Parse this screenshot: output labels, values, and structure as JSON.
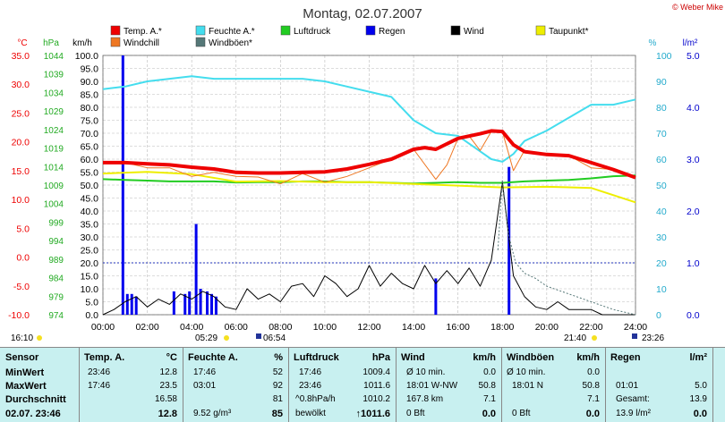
{
  "header": {
    "title": "Montag, 02.07.2007",
    "copyright": "© Weber Mike"
  },
  "colors": {
    "temp": "#ee0000",
    "humidity": "#44ddee",
    "pressure": "#22cc22",
    "rain": "#0000ee",
    "wind": "#000000",
    "dewpoint": "#eeee00",
    "windchill": "#ee7722",
    "gust": "#557777",
    "stats_bg": "#c8f0f0"
  },
  "legend": [
    {
      "label": "Temp. A.*",
      "color": "#ee0000"
    },
    {
      "label": "Feuchte A.*",
      "color": "#44ddee"
    },
    {
      "label": "Luftdruck",
      "color": "#22cc22"
    },
    {
      "label": "Regen",
      "color": "#0000ee"
    },
    {
      "label": "Wind",
      "color": "#000000"
    },
    {
      "label": "Taupunkt*",
      "color": "#eeee00"
    },
    {
      "label": "Windchill",
      "color": "#ee7722"
    },
    {
      "label": "Windböen*",
      "color": "#557777"
    }
  ],
  "axis_units": {
    "temp": "°C",
    "pressure": "hPa",
    "wind": "km/h",
    "humidity": "%",
    "rain": "l/m²"
  },
  "chart_data": {
    "type": "line",
    "x_unit": "hour",
    "xlim": [
      0,
      24
    ],
    "x_ticks": [
      "00:00",
      "02:00",
      "04:00",
      "06:00",
      "08:00",
      "10:00",
      "12:00",
      "14:00",
      "16:00",
      "18:00",
      "20:00",
      "22:00",
      "24:00"
    ],
    "y_temp": {
      "range": [
        -10,
        35
      ],
      "ticks": [
        "35.0",
        "30.0",
        "25.0",
        "20.0",
        "15.0",
        "10.0",
        "5.0",
        "0.0",
        "-5.0",
        "-10.0"
      ]
    },
    "y_pressure": {
      "range": [
        974,
        1044
      ],
      "ticks": [
        "1044",
        "1039",
        "1034",
        "1029",
        "1024",
        "1019",
        "1014",
        "1009",
        "1004",
        "999",
        "994",
        "989",
        "984",
        "979",
        "974"
      ]
    },
    "y_wind": {
      "range": [
        0,
        100
      ],
      "ticks": [
        "100.0",
        "95.0",
        "90.0",
        "85.0",
        "80.0",
        "75.0",
        "70.0",
        "65.0",
        "60.0",
        "55.0",
        "50.0",
        "45.0",
        "40.0",
        "35.0",
        "30.0",
        "25.0",
        "20.0",
        "15.0",
        "10.0",
        "5.0",
        "0.0"
      ]
    },
    "y_humidity": {
      "range": [
        0,
        100
      ],
      "ticks": [
        "100",
        "90",
        "80",
        "70",
        "60",
        "50",
        "40",
        "30",
        "20",
        "10",
        "0"
      ]
    },
    "y_rain": {
      "range": [
        0,
        5
      ],
      "ticks": [
        "5.0",
        "4.0",
        "3.0",
        "2.0",
        "1.0",
        "0.0"
      ]
    },
    "grid": true,
    "series": [
      {
        "name": "Temp. A.*",
        "axis": "temp",
        "x": [
          0,
          1,
          2,
          3,
          4,
          5,
          6,
          7,
          8,
          9,
          10,
          11,
          12,
          13,
          14,
          14.5,
          15,
          16,
          17,
          17.5,
          18,
          18.5,
          19,
          20,
          21,
          22,
          23,
          24
        ],
        "y": [
          16.4,
          16.4,
          16.2,
          16.0,
          15.6,
          15.3,
          14.7,
          14.6,
          14.6,
          14.7,
          14.8,
          15.3,
          16.1,
          17.0,
          18.7,
          19.0,
          18.7,
          20.6,
          21.4,
          21.9,
          21.8,
          19.5,
          18.3,
          17.8,
          17.6,
          16.4,
          15.2,
          13.8
        ]
      },
      {
        "name": "Feuchte A.*",
        "axis": "humidity",
        "x": [
          0,
          1,
          2,
          3,
          4,
          5,
          6,
          7,
          8,
          9,
          10,
          11,
          12,
          13,
          14,
          15,
          16,
          17,
          17.5,
          18,
          18.5,
          19,
          20,
          21,
          22,
          23,
          24
        ],
        "y": [
          87,
          88,
          90,
          91,
          92,
          91,
          91,
          91,
          91,
          91,
          90,
          88,
          86,
          84,
          75,
          70,
          69,
          63,
          60,
          59,
          62,
          67,
          71,
          76,
          81,
          81,
          83
        ]
      },
      {
        "name": "Luftdruck",
        "axis": "pressure",
        "x": [
          0,
          1,
          2,
          3,
          4,
          5,
          6,
          7,
          8,
          9,
          10,
          11,
          12,
          13,
          14,
          15,
          16,
          17,
          18,
          19,
          20,
          21,
          22,
          23,
          24
        ],
        "y": [
          1010.6,
          1010.4,
          1010.2,
          1010.0,
          1010.0,
          1010.0,
          1009.7,
          1009.8,
          1009.8,
          1010.0,
          1010.0,
          1009.8,
          1009.8,
          1009.6,
          1009.4,
          1009.6,
          1009.8,
          1009.6,
          1009.6,
          1010.0,
          1010.2,
          1010.4,
          1010.8,
          1011.4,
          1011.6
        ]
      },
      {
        "name": "Taupunkt*",
        "axis": "temp",
        "x": [
          0,
          2,
          4,
          6,
          8,
          10,
          12,
          14,
          16,
          18,
          20,
          22,
          24
        ],
        "y": [
          14.5,
          14.8,
          14.4,
          13.1,
          13.2,
          13.0,
          13.0,
          12.7,
          12.4,
          12.1,
          12.2,
          12.0,
          9.5
        ]
      },
      {
        "name": "Windchill",
        "axis": "temp",
        "x": [
          0,
          1,
          2,
          3,
          4,
          5,
          6,
          7,
          8,
          9,
          10,
          11,
          12,
          13,
          14,
          15,
          15.5,
          16,
          16.5,
          17,
          17.5,
          18,
          18.5,
          19,
          20,
          21,
          22,
          23,
          24
        ],
        "y": [
          16.4,
          16.4,
          15.5,
          15.5,
          14.0,
          14.7,
          14.0,
          13.9,
          12.7,
          14.5,
          13.0,
          14.0,
          15.5,
          17.0,
          18.7,
          13.5,
          16.0,
          20.6,
          21.0,
          18.5,
          21.8,
          21.8,
          15.0,
          18.5,
          17.8,
          17.6,
          15.5,
          15.2,
          13.8
        ]
      },
      {
        "name": "Wind",
        "axis": "wind",
        "x": [
          0,
          0.5,
          1,
          1.5,
          2,
          2.5,
          3,
          3.5,
          4,
          4.5,
          5,
          5.5,
          6,
          6.5,
          7,
          7.5,
          8,
          8.5,
          9,
          9.5,
          10,
          10.5,
          11,
          11.5,
          12,
          12.5,
          13,
          13.5,
          14,
          14.5,
          15,
          15.5,
          16,
          16.5,
          17,
          17.5,
          18,
          18.5,
          19,
          19.5,
          20,
          20.5,
          21,
          21.5,
          22,
          22.5,
          23,
          23.5,
          24
        ],
        "y": [
          0,
          2,
          5,
          7,
          3,
          6,
          4,
          8,
          6,
          9,
          7,
          3,
          2,
          10,
          6,
          8,
          5,
          11,
          12,
          7,
          15,
          12,
          7,
          10,
          19,
          11,
          16,
          12,
          10,
          19,
          12,
          17,
          12,
          18,
          11,
          21,
          51,
          15,
          7,
          3,
          2,
          5,
          2,
          2,
          2,
          0,
          0,
          0,
          0
        ]
      },
      {
        "name": "Windböen*",
        "axis": "wind",
        "x": [
          17.8,
          18,
          18.3,
          18.6,
          19,
          19.5,
          20,
          21,
          22,
          23,
          24
        ],
        "y": [
          25,
          52,
          30,
          20,
          16,
          14,
          11,
          8,
          5,
          2,
          0
        ]
      }
    ],
    "bars": {
      "name": "Regen",
      "axis": "rain",
      "x": [
        0.9,
        1.1,
        1.3,
        1.5,
        3.2,
        3.7,
        3.9,
        4.2,
        4.4,
        4.7,
        4.9,
        5.1,
        15.0,
        18.3
      ],
      "values": [
        5.0,
        0.4,
        0.4,
        0.35,
        0.45,
        0.4,
        0.45,
        1.75,
        0.5,
        0.45,
        0.4,
        0.35,
        0.7,
        2.85
      ]
    },
    "hline": {
      "axis": "rain",
      "value": 1.0
    }
  },
  "sun_markers": [
    {
      "time": "16:10"
    },
    {
      "time": "05:29"
    },
    {
      "time": "06:54"
    },
    {
      "time": "21:40"
    },
    {
      "time": "23:26"
    }
  ],
  "stats": {
    "sensor": {
      "header": "Sensor",
      "rows": [
        "MinWert",
        "MaxWert",
        "Durchschnitt",
        "02.07. 23:46"
      ]
    },
    "temp": {
      "header": "Temp. A.",
      "unit": "°C",
      "rows": [
        [
          "23:46",
          "12.8"
        ],
        [
          "17:46",
          "23.5"
        ],
        [
          "",
          "16.58"
        ],
        [
          "",
          "12.8"
        ]
      ]
    },
    "humidity": {
      "header": "Feuchte A.",
      "unit": "%",
      "rows": [
        [
          "17:46",
          "52"
        ],
        [
          "03:01",
          "92"
        ],
        [
          "",
          "81"
        ],
        [
          "9.52 g/m³",
          "85"
        ]
      ]
    },
    "pressure": {
      "header": "Luftdruck",
      "unit": "hPa",
      "rows": [
        [
          "17:46",
          "1009.4"
        ],
        [
          "23:46",
          "1011.6"
        ],
        [
          "^0.8hPa/h",
          "1010.2"
        ],
        [
          "bewölkt",
          "↑1011.6"
        ]
      ]
    },
    "wind": {
      "header": "Wind",
      "unit": "km/h",
      "rows": [
        [
          "Ø 10 min.",
          "0.0"
        ],
        [
          "18:01  W-NW",
          "50.8"
        ],
        [
          "167.8 km",
          "7.1"
        ],
        [
          "0 Bft",
          "0.0"
        ]
      ]
    },
    "gust": {
      "header": "Windböen",
      "unit": "km/h",
      "rows": [
        [
          "Ø 10 min.",
          "0.0"
        ],
        [
          "18:01  N",
          "50.8"
        ],
        [
          "",
          "7.1"
        ],
        [
          "0 Bft",
          "0.0"
        ]
      ]
    },
    "rain": {
      "header": "Regen",
      "unit": "l/m²",
      "rows": [
        [
          "",
          ""
        ],
        [
          "01:01",
          "5.0"
        ],
        [
          "Gesamt:",
          "13.9"
        ],
        [
          "13.9 l/m²",
          "0.0"
        ]
      ]
    }
  }
}
